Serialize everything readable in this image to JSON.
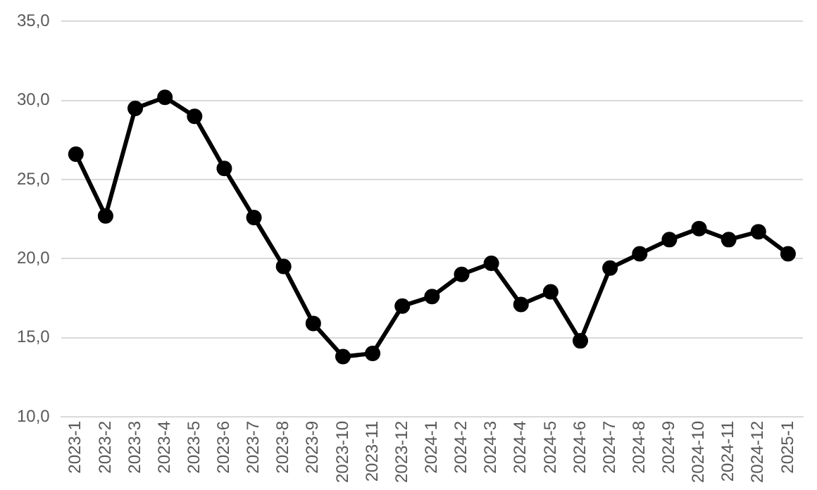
{
  "chart_data": {
    "type": "line",
    "categories": [
      "2023-1",
      "2023-2",
      "2023-3",
      "2023-4",
      "2023-5",
      "2023-6",
      "2023-7",
      "2023-8",
      "2023-9",
      "2023-10",
      "2023-11",
      "2023-12",
      "2024-1",
      "2024-2",
      "2024-3",
      "2024-4",
      "2024-5",
      "2024-6",
      "2024-7",
      "2024-8",
      "2024-9",
      "2024-10",
      "2024-11",
      "2024-12",
      "2025-1"
    ],
    "series": [
      {
        "color": "#000000",
        "values": [
          26.6,
          22.7,
          29.5,
          30.2,
          29.0,
          25.7,
          22.6,
          19.5,
          15.9,
          13.8,
          14.0,
          17.0,
          17.6,
          19.0,
          19.7,
          17.1,
          17.9,
          14.8,
          19.4,
          20.3,
          21.2,
          21.9,
          21.2,
          21.7,
          20.3
        ]
      }
    ],
    "ylim": [
      10,
      35
    ],
    "yticks": [
      {
        "value": 10,
        "label": "10,0"
      },
      {
        "value": 15,
        "label": "15,0"
      },
      {
        "value": 20,
        "label": "20,0"
      },
      {
        "value": 25,
        "label": "25,0"
      },
      {
        "value": 30,
        "label": "30,0"
      },
      {
        "value": 35,
        "label": "35,0"
      }
    ],
    "grid": "y",
    "marker": "circle",
    "line_style": "solid",
    "legend": false
  }
}
